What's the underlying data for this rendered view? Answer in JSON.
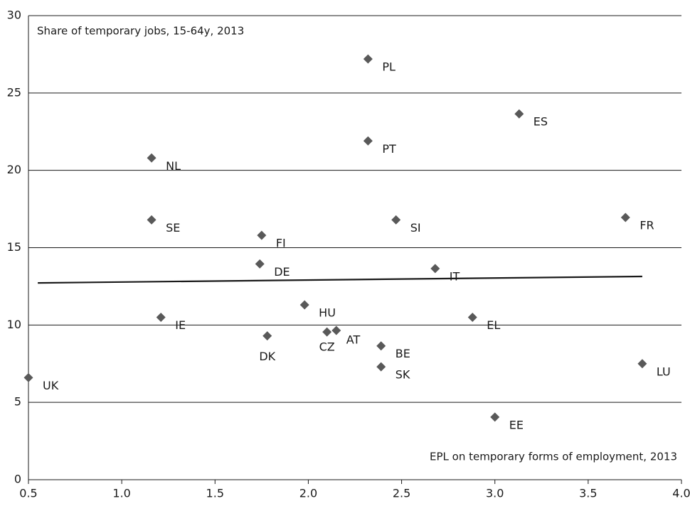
{
  "chart_data": {
    "type": "scatter",
    "title": "Share of temporary jobs, 15-64y, 2013",
    "x_label": "EPL on temporary forms of employment,  2013",
    "labels": [
      "UK",
      "NL",
      "SE",
      "IE",
      "PL",
      "PT",
      "ES",
      "FR",
      "SI",
      "FI",
      "DE",
      "IT",
      "HU",
      "EL",
      "DK",
      "CZ",
      "AT",
      "BE",
      "SK",
      "EE",
      "LU"
    ],
    "x": [
      0.5,
      1.16,
      1.16,
      1.21,
      2.32,
      2.32,
      3.13,
      3.7,
      2.47,
      1.75,
      1.74,
      2.68,
      1.98,
      2.88,
      1.78,
      2.1,
      2.15,
      2.39,
      2.39,
      3.0,
      3.79
    ],
    "values": [
      6.6,
      20.8,
      16.8,
      10.5,
      27.2,
      21.9,
      23.65,
      16.95,
      16.8,
      15.8,
      13.95,
      13.65,
      11.3,
      10.5,
      9.3,
      9.55,
      9.65,
      8.65,
      7.3,
      4.05,
      7.5
    ],
    "color": "#595959",
    "trendline": {
      "x": [
        0.55,
        3.79
      ],
      "y": [
        12.72,
        13.14
      ],
      "color": "#1a1a1a"
    },
    "xlim": [
      0.5,
      4.0
    ],
    "xticks": [
      {
        "value": 0.5,
        "label": "0.5"
      },
      {
        "value": 1.0,
        "label": "1.0"
      },
      {
        "value": 1.5,
        "label": "1.5"
      },
      {
        "value": 2.0,
        "label": "2.0"
      },
      {
        "value": 2.5,
        "label": "2.5"
      },
      {
        "value": 3.0,
        "label": "3.0"
      },
      {
        "value": 3.5,
        "label": "3.5"
      },
      {
        "value": 4.0,
        "label": "4.0"
      }
    ],
    "ylim": [
      0,
      30
    ],
    "yticks": [
      0,
      5,
      10,
      15,
      20,
      25,
      30
    ],
    "grid": true
  }
}
